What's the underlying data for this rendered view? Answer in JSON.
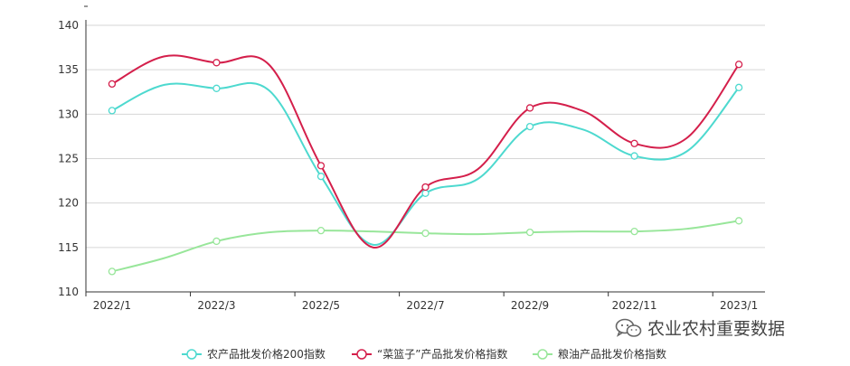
{
  "chart_data": {
    "type": "line",
    "x": [
      "2022/1",
      "2022/2",
      "2022/3",
      "2022/4",
      "2022/5",
      "2022/6",
      "2022/7",
      "2022/8",
      "2022/9",
      "2022/10",
      "2022/11",
      "2022/12",
      "2023/1"
    ],
    "xtick_labels": [
      "2022/1",
      "2022/3",
      "2022/5",
      "2022/7",
      "2022/9",
      "2022/11",
      "2023/1"
    ],
    "xtick_indices": [
      0,
      2,
      4,
      6,
      8,
      10,
      12
    ],
    "yticks": [
      110,
      115,
      120,
      125,
      130,
      135,
      140
    ],
    "ylim": [
      110,
      140
    ],
    "grid": true,
    "legend": "bottom",
    "series": [
      {
        "name": "农产品批发价格200指数",
        "color": "#4dd9cf",
        "values": [
          130.4,
          133.3,
          132.9,
          132.7,
          123.0,
          115.3,
          121.1,
          122.7,
          128.6,
          128.3,
          125.3,
          125.8,
          133.0
        ]
      },
      {
        "name": "“菜篮子”产品批发价格指数",
        "color": "#d41f4b",
        "values": [
          133.4,
          136.5,
          135.8,
          135.6,
          124.2,
          115.0,
          121.8,
          123.8,
          130.7,
          130.4,
          126.7,
          127.3,
          135.6
        ]
      },
      {
        "name": "粮油产品批发价格指数",
        "color": "#98e69a",
        "values": [
          112.3,
          113.8,
          115.7,
          116.7,
          116.9,
          116.8,
          116.6,
          116.5,
          116.7,
          116.8,
          116.8,
          117.1,
          118.0
        ]
      }
    ]
  },
  "watermark": {
    "text": "农业农村重要数据",
    "icon": "wechat-icon"
  }
}
